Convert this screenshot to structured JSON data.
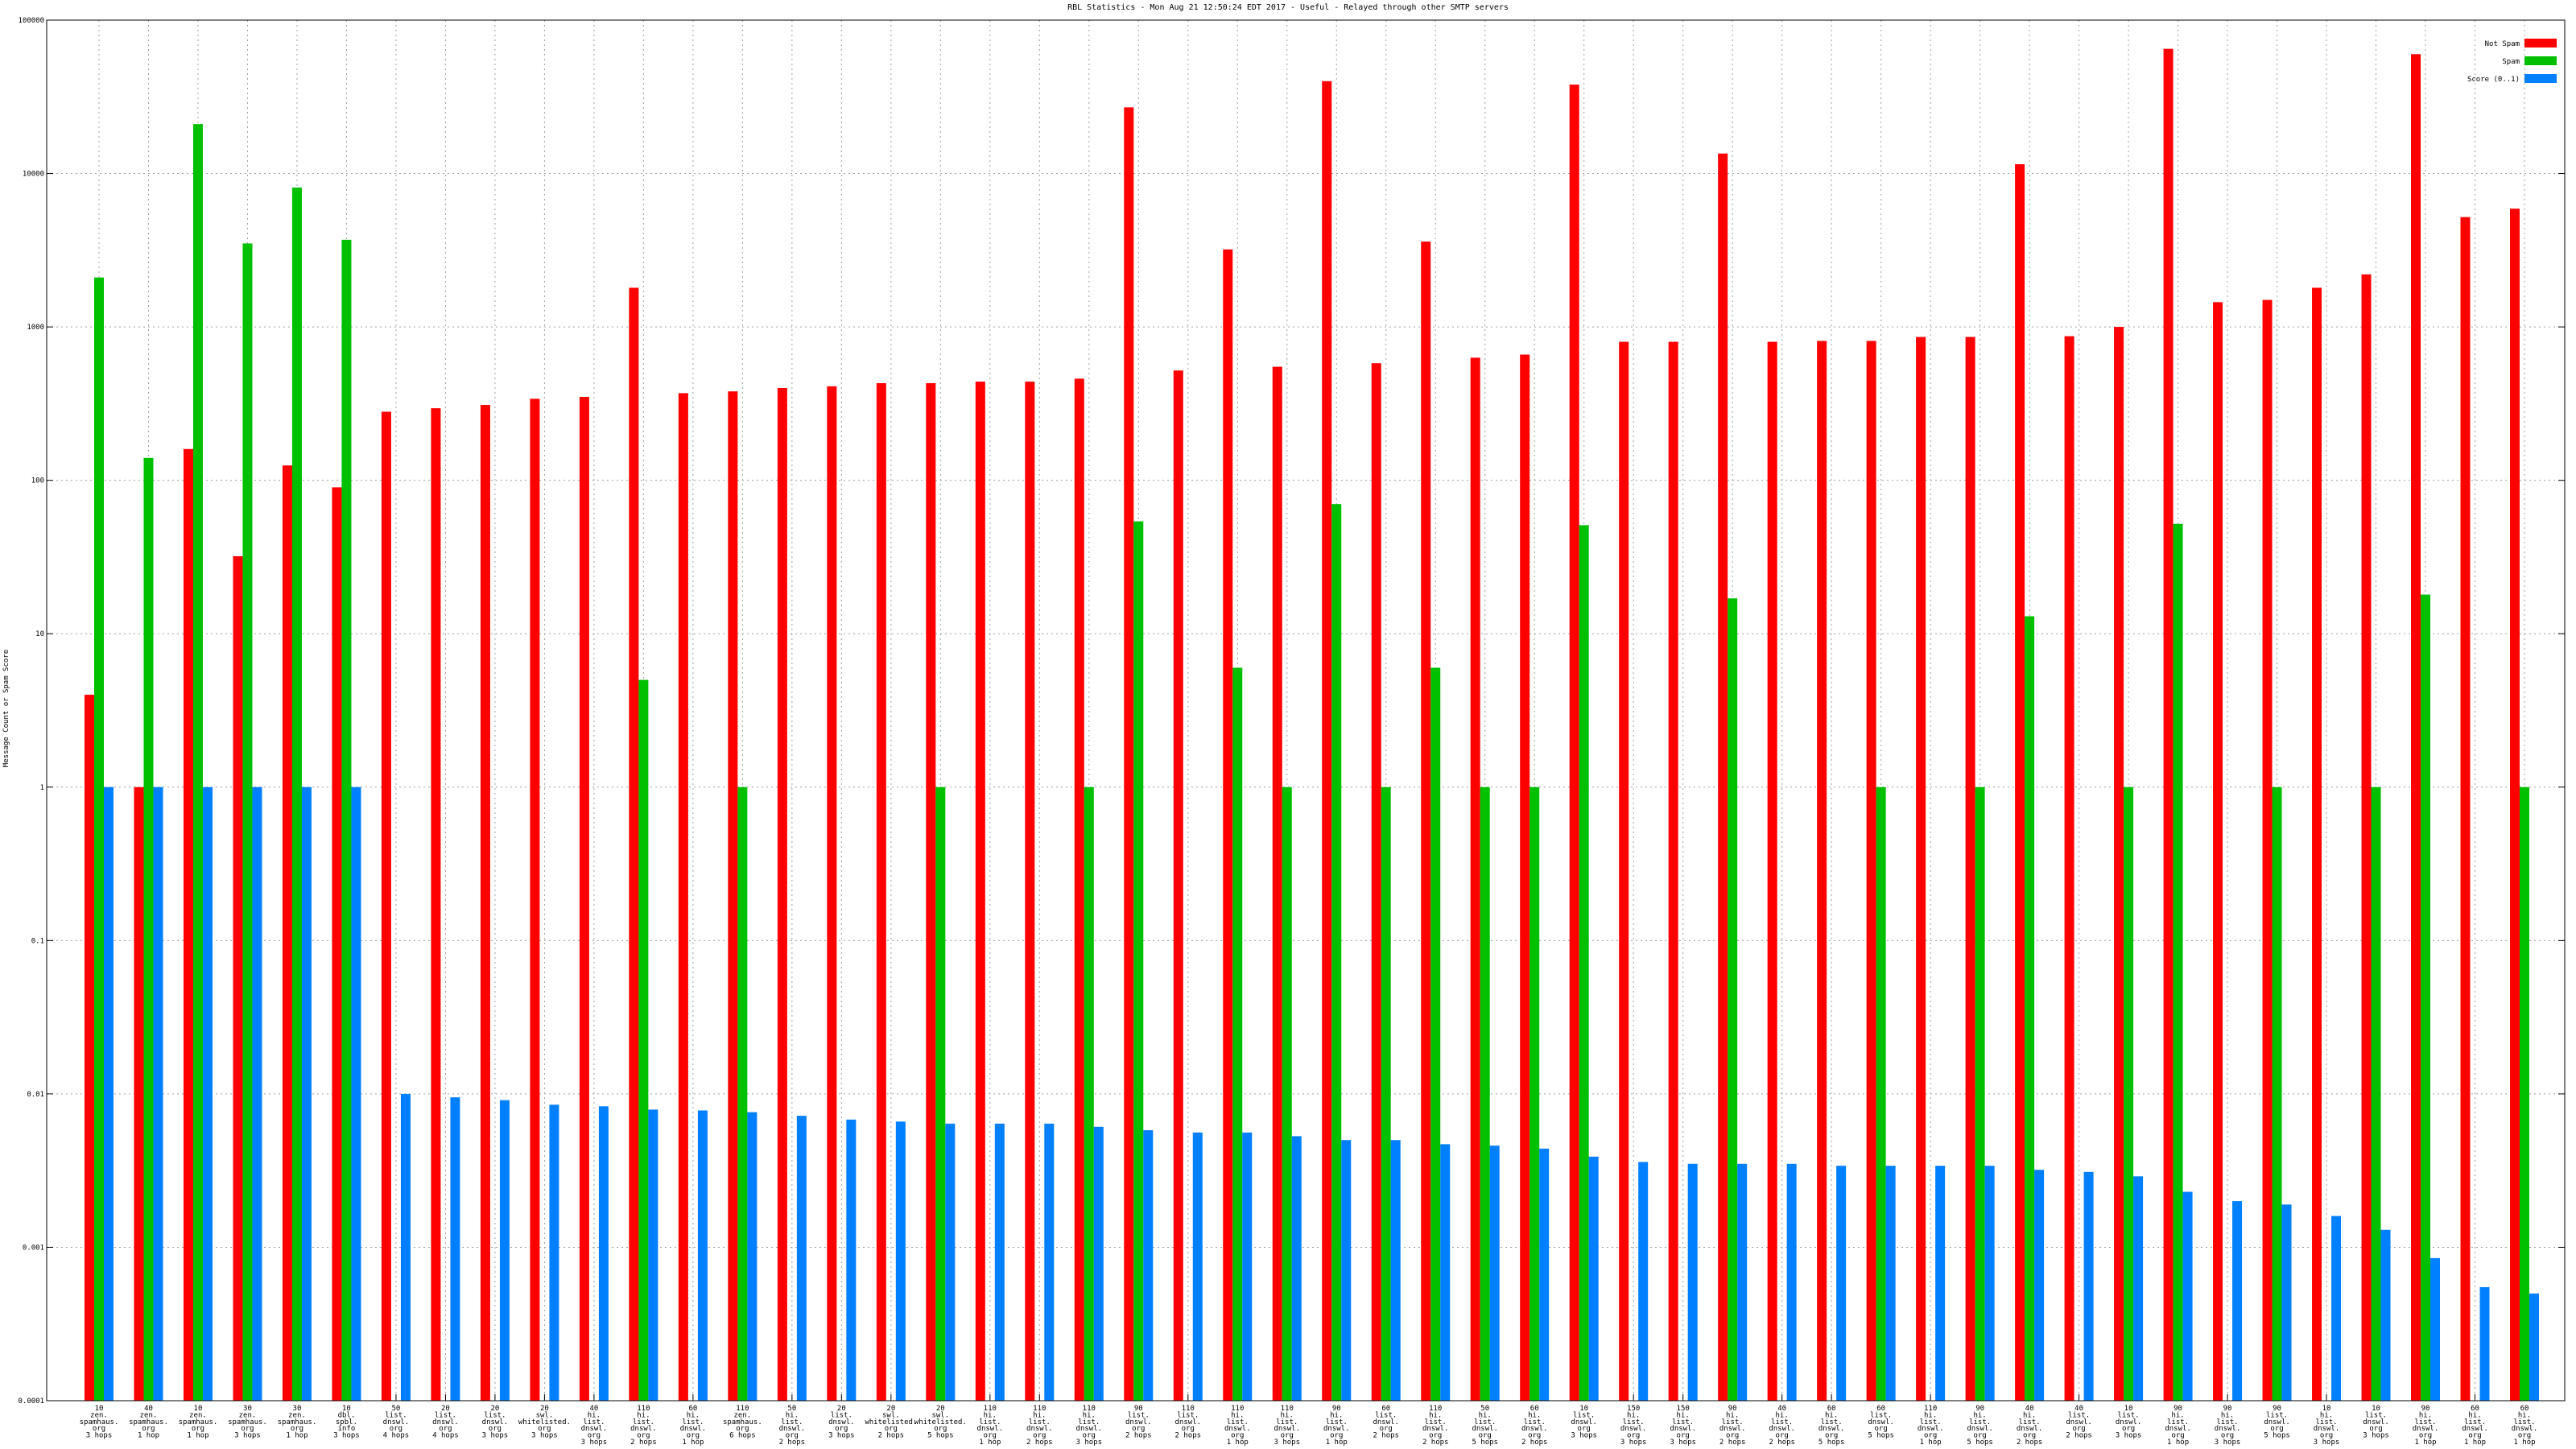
{
  "chart_data": {
    "type": "bar",
    "title": "RBL Statistics - Mon Aug 21 12:50:24 EDT 2017 - Useful - Relayed through other SMTP servers",
    "ylabel": "Message Count or Spam Score",
    "log_scale": true,
    "grid": true,
    "legend": "top-right",
    "ylim": [
      0.0001,
      100000
    ],
    "yticks": [
      0.0001,
      0.001,
      0.01,
      0.1,
      1,
      10,
      100,
      1000,
      10000,
      100000
    ],
    "categories": [
      [
        "10",
        "zen.",
        "spamhaus.",
        "org",
        "3 hops"
      ],
      [
        "40",
        "zen.",
        "spamhaus.",
        "org",
        "1 hop"
      ],
      [
        "10",
        "zen.",
        "spamhaus.",
        "org",
        "1 hop"
      ],
      [
        "30",
        "zen.",
        "spamhaus.",
        "org",
        "3 hops"
      ],
      [
        "30",
        "zen.",
        "spamhaus.",
        "org",
        "1 hop"
      ],
      [
        "10",
        "dbl.",
        "spbl.",
        "info",
        "3 hops"
      ],
      [
        "50",
        "list.",
        "dnswl.",
        "org",
        "4 hops"
      ],
      [
        "20",
        "list.",
        "dnswl.",
        "org",
        "4 hops"
      ],
      [
        "20",
        "list.",
        "dnswl.",
        "org",
        "3 hops"
      ],
      [
        "20",
        "swl.",
        "whitelisted.",
        "org",
        "3 hops"
      ],
      [
        "40",
        "hi.",
        "list.",
        "dnswl.",
        "org",
        "3 hops"
      ],
      [
        "110",
        "hi.",
        "list.",
        "dnswl.",
        "org",
        "2 hops"
      ],
      [
        "60",
        "hi.",
        "list.",
        "dnswl.",
        "org",
        "1 hop"
      ],
      [
        "110",
        "zen.",
        "spamhaus.",
        "org",
        "6 hops"
      ],
      [
        "50",
        "hi.",
        "list.",
        "dnswl.",
        "org",
        "2 hops"
      ],
      [
        "20",
        "list.",
        "dnswl.",
        "org",
        "3 hops"
      ],
      [
        "20",
        "swl.",
        "whitelisted.",
        "org",
        "2 hops"
      ],
      [
        "20",
        "swl.",
        "whitelisted.",
        "org",
        "5 hops"
      ],
      [
        "110",
        "hi.",
        "list.",
        "dnswl.",
        "org",
        "1 hop"
      ],
      [
        "110",
        "hi.",
        "list.",
        "dnswl.",
        "org",
        "2 hops"
      ],
      [
        "110",
        "hi.",
        "list.",
        "dnswl.",
        "org",
        "3 hops"
      ],
      [
        "90",
        "list.",
        "dnswl.",
        "org",
        "2 hops"
      ],
      [
        "110",
        "list.",
        "dnswl.",
        "org",
        "2 hops"
      ],
      [
        "110",
        "hi.",
        "list.",
        "dnswl.",
        "org",
        "1 hop"
      ],
      [
        "110",
        "hi.",
        "list.",
        "dnswl.",
        "org",
        "3 hops"
      ],
      [
        "90",
        "hi.",
        "list.",
        "dnswl.",
        "org",
        "1 hop"
      ],
      [
        "60",
        "list.",
        "dnswl.",
        "org",
        "2 hops"
      ],
      [
        "110",
        "hi.",
        "list.",
        "dnswl.",
        "org",
        "2 hops"
      ],
      [
        "50",
        "hi.",
        "list.",
        "dnswl.",
        "org",
        "5 hops"
      ],
      [
        "60",
        "hi.",
        "list.",
        "dnswl.",
        "org",
        "2 hops"
      ],
      [
        "10",
        "list.",
        "dnswl.",
        "org",
        "3 hops"
      ],
      [
        "150",
        "hi.",
        "list.",
        "dnswl.",
        "org",
        "3 hops"
      ],
      [
        "150",
        "hi.",
        "list.",
        "dnswl.",
        "org",
        "3 hops"
      ],
      [
        "90",
        "hi.",
        "list.",
        "dnswl.",
        "org",
        "2 hops"
      ],
      [
        "40",
        "hi.",
        "list.",
        "dnswl.",
        "org",
        "2 hops"
      ],
      [
        "60",
        "hi.",
        "list.",
        "dnswl.",
        "org",
        "5 hops"
      ],
      [
        "60",
        "list.",
        "dnswl.",
        "org",
        "5 hops"
      ],
      [
        "110",
        "hi.",
        "list.",
        "dnswl.",
        "org",
        "1 hop"
      ],
      [
        "90",
        "hi.",
        "list.",
        "dnswl.",
        "org",
        "5 hops"
      ],
      [
        "40",
        "hi.",
        "list.",
        "dnswl.",
        "org",
        "2 hops"
      ],
      [
        "40",
        "list.",
        "dnswl.",
        "org",
        "2 hops"
      ],
      [
        "10",
        "list.",
        "dnswl.",
        "org",
        "3 hops"
      ],
      [
        "90",
        "hi.",
        "list.",
        "dnswl.",
        "org",
        "1 hop"
      ],
      [
        "90",
        "hi.",
        "list.",
        "dnswl.",
        "org",
        "3 hops"
      ],
      [
        "90",
        "list.",
        "dnswl.",
        "org",
        "5 hops"
      ],
      [
        "10",
        "hi.",
        "list.",
        "dnswl.",
        "org",
        "3 hops"
      ],
      [
        "10",
        "list.",
        "dnswl.",
        "org",
        "3 hops"
      ],
      [
        "90",
        "hi.",
        "list.",
        "dnswl.",
        "org",
        "1 hop"
      ],
      [
        "60",
        "hi.",
        "list.",
        "dnswl.",
        "org",
        "1 hop"
      ],
      [
        "60",
        "hi.",
        "list.",
        "dnswl.",
        "org",
        "1 hop"
      ]
    ],
    "series": [
      {
        "name": "Not Spam",
        "color": "#ff0000",
        "values": [
          4,
          1,
          160,
          32,
          125,
          90,
          280,
          295,
          310,
          340,
          350,
          1800,
          370,
          380,
          400,
          410,
          430,
          430,
          440,
          440,
          460,
          27000,
          520,
          3200,
          550,
          40000,
          580,
          3600,
          630,
          660,
          38000,
          800,
          800,
          13500,
          800,
          810,
          810,
          860,
          860,
          11500,
          870,
          1000,
          65000,
          1450,
          1500,
          1800,
          2200,
          60000,
          5200,
          5900
        ]
      },
      {
        "name": "Spam",
        "color": "#00c000",
        "values": [
          2100,
          140,
          21000,
          3500,
          8100,
          3700,
          null,
          null,
          null,
          null,
          null,
          5,
          null,
          1,
          null,
          null,
          null,
          1,
          null,
          null,
          1,
          54,
          null,
          6,
          1,
          70,
          1,
          6,
          1,
          1,
          51,
          null,
          null,
          17,
          null,
          null,
          1,
          null,
          1,
          13,
          null,
          1,
          52,
          null,
          1,
          null,
          1,
          18,
          null,
          1
        ]
      },
      {
        "name": "Score (0..1)",
        "color": "#0080ff",
        "values": [
          1,
          1,
          1,
          1,
          1,
          1,
          0.01,
          0.0095,
          0.0091,
          0.0085,
          0.0083,
          0.0079,
          0.0078,
          0.0076,
          0.0072,
          0.0068,
          0.0066,
          0.0064,
          0.0064,
          0.0064,
          0.0061,
          0.0058,
          0.0056,
          0.0056,
          0.0053,
          0.005,
          0.005,
          0.0047,
          0.0046,
          0.0044,
          0.0039,
          0.0036,
          0.0035,
          0.0035,
          0.0035,
          0.0034,
          0.0034,
          0.0034,
          0.0034,
          0.0032,
          0.0031,
          0.0029,
          0.0023,
          0.002,
          0.0019,
          0.0016,
          0.0013,
          0.00085,
          0.00055,
          0.0005
        ]
      }
    ]
  }
}
